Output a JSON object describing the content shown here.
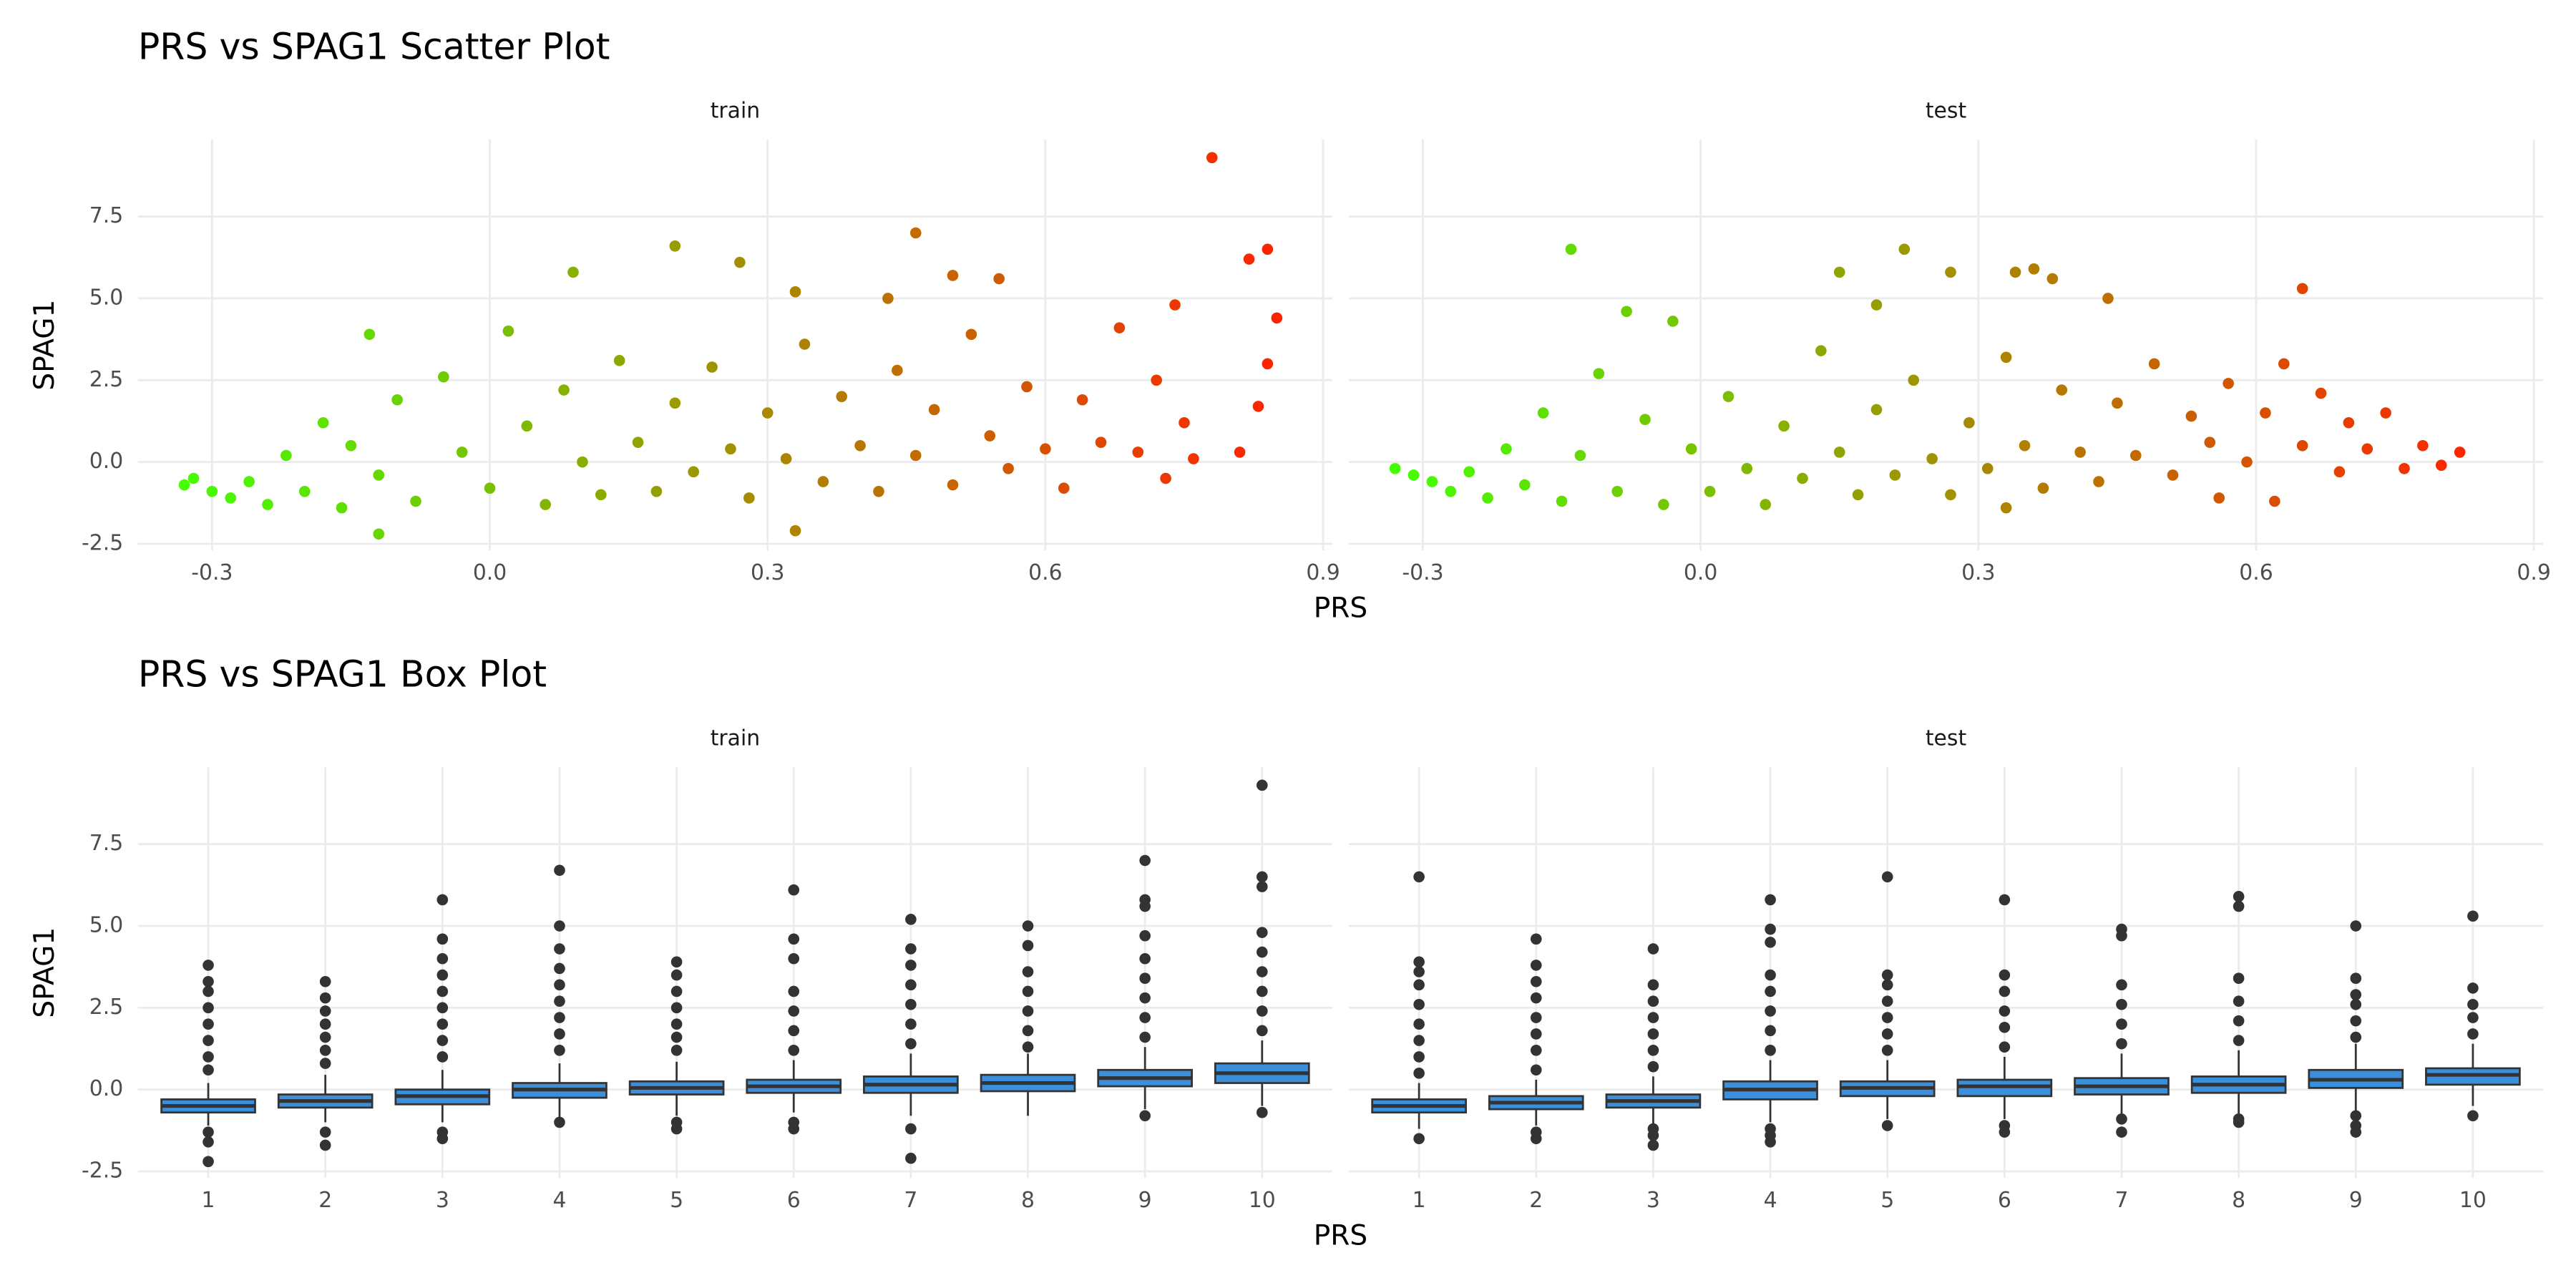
{
  "chart_data": [
    {
      "type": "scatter",
      "title": "PRS vs SPAG1 Scatter Plot",
      "xlabel": "PRS",
      "ylabel": "SPAG1",
      "xlim": [
        -0.38,
        0.91
      ],
      "xticks": [
        -0.3,
        {
          "value": 0,
          "label": "0.0"
        },
        0.3,
        0.6,
        0.9
      ],
      "ylim": [
        -2.7,
        9.85
      ],
      "yticks": [
        -2.5,
        {
          "value": 0,
          "label": "0.0"
        },
        2.5,
        {
          "value": 5,
          "label": "5.0"
        },
        7.5
      ],
      "grid": true,
      "color_low": "#44ff00",
      "color_high": "#ff2200",
      "panels": [
        {
          "name": "train",
          "x": [
            -0.33,
            -0.32,
            -0.3,
            -0.28,
            -0.26,
            -0.24,
            -0.22,
            -0.2,
            -0.18,
            -0.16,
            -0.15,
            -0.13,
            -0.12,
            -0.12,
            -0.1,
            -0.08,
            -0.05,
            -0.03,
            0.0,
            0.02,
            0.04,
            0.06,
            0.08,
            0.09,
            0.1,
            0.12,
            0.14,
            0.16,
            0.18,
            0.2,
            0.2,
            0.22,
            0.24,
            0.26,
            0.27,
            0.28,
            0.3,
            0.32,
            0.33,
            0.33,
            0.34,
            0.36,
            0.38,
            0.4,
            0.42,
            0.43,
            0.44,
            0.46,
            0.46,
            0.48,
            0.5,
            0.5,
            0.52,
            0.54,
            0.55,
            0.56,
            0.58,
            0.6,
            0.62,
            0.64,
            0.66,
            0.68,
            0.7,
            0.72,
            0.73,
            0.74,
            0.75,
            0.76,
            0.78,
            0.81,
            0.82,
            0.83,
            0.84,
            0.84,
            0.85
          ],
          "y": [
            -0.7,
            -0.5,
            -0.9,
            -1.1,
            -0.6,
            -1.3,
            0.2,
            -0.9,
            1.2,
            -1.4,
            0.5,
            3.9,
            -2.2,
            -0.4,
            1.9,
            -1.2,
            2.6,
            0.3,
            -0.8,
            4.0,
            1.1,
            -1.3,
            2.2,
            5.8,
            0.0,
            -1.0,
            3.1,
            0.6,
            -0.9,
            6.6,
            1.8,
            -0.3,
            2.9,
            0.4,
            6.1,
            -1.1,
            1.5,
            0.1,
            5.2,
            -2.1,
            3.6,
            -0.6,
            2.0,
            0.5,
            -0.9,
            5.0,
            2.8,
            7.0,
            0.2,
            1.6,
            5.7,
            -0.7,
            3.9,
            0.8,
            5.6,
            -0.2,
            2.3,
            0.4,
            -0.8,
            1.9,
            0.6,
            4.1,
            0.3,
            2.5,
            -0.5,
            4.8,
            1.2,
            0.1,
            9.3,
            0.3,
            6.2,
            1.7,
            6.5,
            3.0,
            4.4
          ]
        },
        {
          "name": "test",
          "x": [
            -0.33,
            -0.31,
            -0.29,
            -0.27,
            -0.25,
            -0.23,
            -0.21,
            -0.19,
            -0.17,
            -0.15,
            -0.14,
            -0.13,
            -0.11,
            -0.09,
            -0.08,
            -0.06,
            -0.04,
            -0.03,
            -0.01,
            0.01,
            0.03,
            0.05,
            0.07,
            0.09,
            0.11,
            0.13,
            0.15,
            0.15,
            0.17,
            0.19,
            0.19,
            0.21,
            0.22,
            0.23,
            0.25,
            0.27,
            0.27,
            0.29,
            0.31,
            0.33,
            0.33,
            0.34,
            0.35,
            0.36,
            0.37,
            0.38,
            0.39,
            0.41,
            0.43,
            0.44,
            0.45,
            0.47,
            0.49,
            0.51,
            0.53,
            0.55,
            0.56,
            0.57,
            0.59,
            0.61,
            0.62,
            0.63,
            0.65,
            0.65,
            0.67,
            0.69,
            0.7,
            0.72,
            0.74,
            0.76,
            0.78,
            0.8,
            0.82
          ],
          "y": [
            -0.2,
            -0.4,
            -0.6,
            -0.9,
            -0.3,
            -1.1,
            0.4,
            -0.7,
            1.5,
            -1.2,
            6.5,
            0.2,
            2.7,
            -0.9,
            4.6,
            1.3,
            -1.3,
            4.3,
            0.4,
            -0.9,
            2.0,
            -0.2,
            -1.3,
            1.1,
            -0.5,
            3.4,
            5.8,
            0.3,
            -1.0,
            4.8,
            1.6,
            -0.4,
            6.5,
            2.5,
            0.1,
            5.8,
            -1.0,
            1.2,
            -0.2,
            -1.4,
            3.2,
            5.8,
            0.5,
            5.9,
            -0.8,
            5.6,
            2.2,
            0.3,
            -0.6,
            5.0,
            1.8,
            0.2,
            3.0,
            -0.4,
            1.4,
            0.6,
            -1.1,
            2.4,
            0.0,
            1.5,
            -1.2,
            3.0,
            5.3,
            0.5,
            2.1,
            -0.3,
            1.2,
            0.4,
            1.5,
            -0.2,
            0.5,
            -0.1,
            0.3
          ]
        }
      ]
    },
    {
      "type": "box",
      "title": "PRS vs SPAG1 Box Plot",
      "xlabel": "PRS",
      "ylabel": "SPAG1",
      "categories": [
        "1",
        "2",
        "3",
        "4",
        "5",
        "6",
        "7",
        "8",
        "9",
        "10"
      ],
      "ylim": [
        -2.7,
        9.85
      ],
      "yticks": [
        -2.5,
        {
          "value": 0,
          "label": "0.0"
        },
        2.5,
        {
          "value": 5,
          "label": "5.0"
        },
        7.5
      ],
      "grid": true,
      "color": "#3b8fdb",
      "panels": [
        {
          "name": "train",
          "min": [
            -1.1,
            -1.0,
            -1.0,
            -0.9,
            -0.8,
            -0.7,
            -0.8,
            -0.8,
            -0.6,
            -0.5
          ],
          "q1": [
            -0.7,
            -0.55,
            -0.45,
            -0.25,
            -0.15,
            -0.1,
            -0.1,
            -0.05,
            0.1,
            0.2
          ],
          "median": [
            -0.5,
            -0.35,
            -0.2,
            0.0,
            0.05,
            0.1,
            0.15,
            0.2,
            0.35,
            0.5
          ],
          "q3": [
            -0.3,
            -0.15,
            0.0,
            0.2,
            0.25,
            0.3,
            0.4,
            0.45,
            0.6,
            0.8
          ],
          "max": [
            0.2,
            0.45,
            0.6,
            0.8,
            0.85,
            0.9,
            1.1,
            1.1,
            1.3,
            1.5
          ],
          "outliers": [
            [
              0.6,
              1.0,
              1.5,
              2.0,
              2.5,
              3.0,
              3.3,
              3.8,
              -1.3,
              -1.6,
              -2.2
            ],
            [
              0.8,
              1.2,
              1.6,
              2.0,
              2.4,
              2.8,
              3.3,
              -1.3,
              -1.7
            ],
            [
              1.0,
              1.5,
              2.0,
              2.5,
              3.0,
              3.5,
              4.0,
              4.6,
              5.8,
              -1.3,
              -1.5
            ],
            [
              1.2,
              1.7,
              2.2,
              2.7,
              3.2,
              3.7,
              4.3,
              5.0,
              6.7,
              -1.0
            ],
            [
              1.2,
              1.6,
              2.0,
              2.5,
              3.0,
              3.5,
              3.9,
              -1.0,
              -1.2
            ],
            [
              1.2,
              1.8,
              2.4,
              3.0,
              4.0,
              4.6,
              6.1,
              -1.0,
              -1.2
            ],
            [
              1.4,
              2.0,
              2.6,
              3.2,
              3.8,
              4.3,
              5.2,
              -1.2,
              -2.1
            ],
            [
              1.3,
              1.8,
              2.4,
              3.0,
              3.6,
              4.4,
              5.0
            ],
            [
              1.6,
              2.2,
              2.8,
              3.4,
              4.0,
              4.7,
              5.6,
              5.8,
              7.0,
              -0.8
            ],
            [
              1.8,
              2.4,
              3.0,
              3.6,
              4.2,
              4.8,
              6.2,
              6.5,
              9.3,
              -0.7
            ]
          ]
        },
        {
          "name": "test",
          "min": [
            -1.2,
            -1.1,
            -1.1,
            -1.0,
            -0.9,
            -0.9,
            -0.8,
            -0.8,
            -0.7,
            -0.5
          ],
          "q1": [
            -0.7,
            -0.6,
            -0.55,
            -0.3,
            -0.2,
            -0.2,
            -0.15,
            -0.1,
            0.05,
            0.15
          ],
          "median": [
            -0.5,
            -0.4,
            -0.35,
            0.0,
            0.05,
            0.1,
            0.1,
            0.15,
            0.3,
            0.45
          ],
          "q3": [
            -0.3,
            -0.2,
            -0.15,
            0.25,
            0.25,
            0.3,
            0.35,
            0.4,
            0.6,
            0.65
          ],
          "max": [
            0.2,
            0.3,
            0.4,
            0.9,
            0.9,
            1.0,
            1.1,
            1.2,
            1.4,
            1.4
          ],
          "outliers": [
            [
              0.5,
              1.0,
              1.5,
              2.0,
              2.6,
              3.2,
              3.6,
              3.9,
              6.5,
              -1.5
            ],
            [
              0.6,
              1.2,
              1.7,
              2.2,
              2.8,
              3.3,
              3.8,
              4.6,
              -1.3,
              -1.5
            ],
            [
              0.7,
              1.2,
              1.7,
              2.2,
              2.7,
              3.2,
              4.3,
              -1.2,
              -1.4,
              -1.7
            ],
            [
              1.2,
              1.8,
              2.4,
              3.0,
              3.5,
              4.5,
              4.9,
              5.8,
              -1.2,
              -1.4,
              -1.6
            ],
            [
              1.2,
              1.7,
              2.2,
              2.7,
              3.2,
              3.5,
              6.5,
              -1.1
            ],
            [
              1.3,
              1.9,
              2.4,
              3.0,
              3.5,
              5.8,
              -1.1,
              -1.3
            ],
            [
              1.4,
              2.0,
              2.6,
              3.2,
              4.7,
              4.9,
              -0.9,
              -1.3
            ],
            [
              1.5,
              2.1,
              2.7,
              3.4,
              5.6,
              5.9,
              -0.9,
              -1.0
            ],
            [
              1.6,
              2.1,
              2.6,
              2.9,
              3.4,
              5.0,
              -0.8,
              -1.1,
              -1.3
            ],
            [
              1.7,
              2.2,
              2.6,
              3.1,
              5.3,
              -0.8
            ]
          ]
        }
      ]
    }
  ]
}
